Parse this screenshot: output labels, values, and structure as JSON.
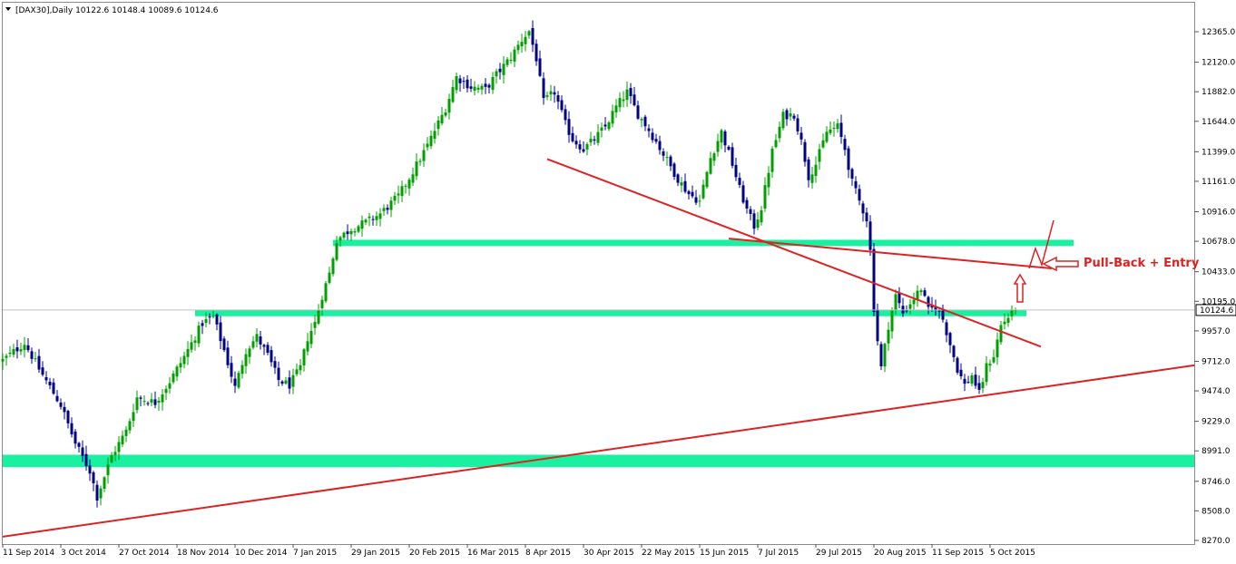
{
  "chart_data": {
    "type": "candlestick",
    "symbol_line": "[DAX30],Daily  10122.6 10148.4 10089.6 10124.6",
    "current_price_label": "10124.6",
    "current_price": 10124.6,
    "y_ticks": [
      12365.0,
      12120.0,
      11882.0,
      11644.0,
      11399.0,
      11161.0,
      10916.0,
      10678.0,
      10433.0,
      10195.0,
      9957.0,
      9712.0,
      9474.0,
      9229.0,
      8991.0,
      8746.0,
      8508.0,
      8270.0
    ],
    "y_tick_labels": [
      "12365.0",
      "12120.0",
      "11882.0",
      "11644.0",
      "11399.0",
      "11161.0",
      "10916.0",
      "10678.0",
      "10433.0",
      "10195.0",
      "9957.0",
      "9712.0",
      "9474.0",
      "9229.0",
      "8991.0",
      "8746.0",
      "8508.0",
      "8270.0"
    ],
    "ylim": [
      8270.0,
      12470.0
    ],
    "x_labels": [
      "11 Sep 2014",
      "3 Oct 2014",
      "27 Oct 2014",
      "18 Nov 2014",
      "10 Dec 2014",
      "7 Jan 2015",
      "29 Jan 2015",
      "20 Feb 2015",
      "16 Mar 2015",
      "8 Apr 2015",
      "30 Apr 2015",
      "22 May 2015",
      "15 Jun 2015",
      "7 Jul 2015",
      "29 Jul 2015",
      "20 Aug 2015",
      "11 Sep 2015",
      "5 Oct 2015"
    ],
    "x_label_bars": [
      0,
      16,
      32,
      48,
      64,
      80,
      96,
      112,
      128,
      144,
      160,
      176,
      192,
      208,
      224,
      240,
      256,
      272
    ],
    "bar_count": 280,
    "close_keypoints": [
      [
        0,
        9720
      ],
      [
        6,
        9860
      ],
      [
        10,
        9650
      ],
      [
        16,
        9360
      ],
      [
        20,
        9050
      ],
      [
        24,
        8830
      ],
      [
        26,
        8620
      ],
      [
        30,
        8950
      ],
      [
        34,
        9150
      ],
      [
        37,
        9420
      ],
      [
        42,
        9380
      ],
      [
        46,
        9550
      ],
      [
        50,
        9750
      ],
      [
        55,
        10020
      ],
      [
        58,
        10070
      ],
      [
        61,
        9800
      ],
      [
        64,
        9500
      ],
      [
        67,
        9800
      ],
      [
        70,
        9910
      ],
      [
        73,
        9760
      ],
      [
        76,
        9560
      ],
      [
        79,
        9520
      ],
      [
        82,
        9660
      ],
      [
        84,
        9900
      ],
      [
        86,
        10020
      ],
      [
        88,
        10240
      ],
      [
        90,
        10420
      ],
      [
        92,
        10690
      ],
      [
        96,
        10780
      ],
      [
        100,
        10830
      ],
      [
        104,
        10900
      ],
      [
        109,
        11040
      ],
      [
        113,
        11240
      ],
      [
        117,
        11450
      ],
      [
        122,
        11750
      ],
      [
        125,
        12000
      ],
      [
        129,
        11920
      ],
      [
        133,
        11900
      ],
      [
        136,
        12020
      ],
      [
        140,
        12160
      ],
      [
        143,
        12300
      ],
      [
        145,
        12370
      ],
      [
        147,
        12150
      ],
      [
        149,
        11800
      ],
      [
        152,
        11880
      ],
      [
        155,
        11620
      ],
      [
        157,
        11500
      ],
      [
        160,
        11420
      ],
      [
        163,
        11500
      ],
      [
        166,
        11600
      ],
      [
        169,
        11760
      ],
      [
        172,
        11880
      ],
      [
        175,
        11700
      ],
      [
        177,
        11620
      ],
      [
        180,
        11480
      ],
      [
        183,
        11330
      ],
      [
        186,
        11180
      ],
      [
        189,
        11060
      ],
      [
        192,
        11000
      ],
      [
        195,
        11350
      ],
      [
        198,
        11560
      ],
      [
        201,
        11300
      ],
      [
        203,
        11100
      ],
      [
        205,
        10930
      ],
      [
        207,
        10800
      ],
      [
        209,
        10950
      ],
      [
        212,
        11400
      ],
      [
        215,
        11690
      ],
      [
        218,
        11700
      ],
      [
        220,
        11480
      ],
      [
        222,
        11200
      ],
      [
        224,
        11300
      ],
      [
        227,
        11560
      ],
      [
        230,
        11600
      ],
      [
        232,
        11420
      ],
      [
        234,
        11150
      ],
      [
        236,
        11000
      ],
      [
        238,
        10860
      ],
      [
        239,
        10600
      ],
      [
        240,
        10140
      ],
      [
        241,
        9880
      ],
      [
        242,
        9660
      ],
      [
        244,
        10000
      ],
      [
        246,
        10240
      ],
      [
        248,
        10100
      ],
      [
        251,
        10220
      ],
      [
        253,
        10300
      ],
      [
        255,
        10120
      ],
      [
        257,
        10150
      ],
      [
        259,
        10050
      ],
      [
        261,
        9850
      ],
      [
        263,
        9650
      ],
      [
        265,
        9520
      ],
      [
        267,
        9600
      ],
      [
        269,
        9450
      ],
      [
        271,
        9670
      ],
      [
        273,
        9760
      ],
      [
        275,
        10000
      ],
      [
        277,
        10070
      ],
      [
        279,
        10124.6
      ]
    ],
    "zones": [
      {
        "name": "support-zone-upper",
        "from": 10640.0,
        "to": 10690.0,
        "x_from_bar": 91,
        "x_to_bar": 295,
        "color": "#19f0a0"
      },
      {
        "name": "support-zone-middle",
        "from": 10075.0,
        "to": 10125.0,
        "x_from_bar": 53,
        "x_to_bar": 282,
        "color": "#19f0a0"
      },
      {
        "name": "support-zone-lower",
        "from": 8860.0,
        "to": 8960.0,
        "x_from_bar": 0,
        "x_to_bar": 330,
        "color": "#19f0a0"
      }
    ],
    "trendlines": [
      {
        "name": "long-term-rising-trendline",
        "from": [
          0,
          8300
        ],
        "to": [
          330,
          9680
        ],
        "color": "#dd2222"
      },
      {
        "name": "falling-trendline",
        "from": [
          150,
          11340
        ],
        "to": [
          286,
          9830
        ],
        "color": "#dd2222"
      },
      {
        "name": "upper-flat-resistance-line",
        "from": [
          200,
          10700
        ],
        "to": [
          289,
          10460
        ],
        "color": "#dd2222"
      }
    ],
    "annotation": {
      "text": "Pull-Back + Entry",
      "color": "#dd2222"
    },
    "colors": {
      "bull": "#00a000",
      "bear": "#00008b",
      "trendline": "#dd2222",
      "zone": "#19f0a0",
      "price_line": "#c0c0c0"
    }
  }
}
